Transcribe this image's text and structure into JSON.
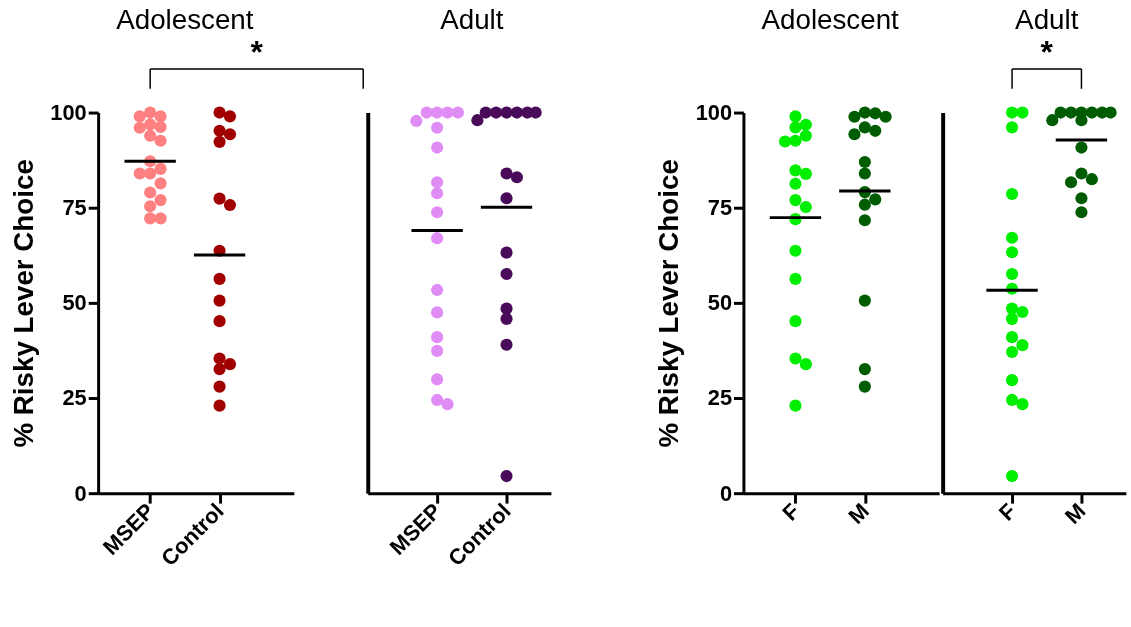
{
  "chart_data": [
    {
      "type": "scatter",
      "title": "Adolescent",
      "ylabel": "% Risky Lever Choice",
      "categories": [
        "MSEP",
        "Control"
      ],
      "ylim": [
        0,
        100
      ],
      "yticks": [
        0,
        25,
        50,
        75,
        100
      ],
      "marker": "circle",
      "annotations": [
        "*"
      ],
      "ref_lines": [
        {
          "axis": "y",
          "value": 87.2,
          "color": "#000000"
        },
        {
          "axis": "y",
          "value": 62.6,
          "color": "#000000"
        }
      ],
      "series": [
        {
          "color": "#ff8080",
          "x": [
            "MSEP",
            "MSEP",
            "MSEP",
            "MSEP",
            "MSEP",
            "MSEP",
            "MSEP",
            "MSEP",
            "MSEP",
            "MSEP",
            "MSEP",
            "MSEP",
            "MSEP",
            "MSEP",
            "MSEP",
            "MSEP",
            "MSEP",
            "MSEP"
          ],
          "values": [
            100,
            99,
            99,
            96.9,
            96.2,
            96,
            93.9,
            92.6,
            87.2,
            85.2,
            84,
            84,
            81.4,
            79,
            77,
            75.4,
            72.2,
            72.2
          ]
        },
        {
          "color": "#a00000",
          "x": [
            "Control",
            "Control",
            "Control",
            "Control",
            "Control",
            "Control",
            "Control",
            "Control",
            "Control",
            "Control",
            "Control",
            "Control",
            "Control",
            "Control",
            "Control",
            "Control"
          ],
          "values": [
            100,
            99,
            95.2,
            94.3,
            92.3,
            77.4,
            75.7,
            63.7,
            56.3,
            50.6,
            45.2,
            35.4,
            33.9,
            32.6,
            28,
            23
          ]
        }
      ]
    },
    {
      "type": "scatter",
      "title": "Adult",
      "categories": [
        "MSEP",
        "Control"
      ],
      "ylim": [
        0,
        100
      ],
      "tick_labels": "x",
      "marker": "circle",
      "ref_lines": [
        {
          "axis": "y",
          "value": 69,
          "color": "#000000"
        },
        {
          "axis": "y",
          "value": 75.1,
          "color": "#000000"
        }
      ],
      "series": [
        {
          "color": "#e08cf5",
          "x": [
            "MSEP",
            "MSEP",
            "MSEP",
            "MSEP",
            "MSEP",
            "MSEP",
            "MSEP",
            "MSEP",
            "MSEP",
            "MSEP",
            "MSEP",
            "MSEP",
            "MSEP",
            "MSEP",
            "MSEP",
            "MSEP",
            "MSEP",
            "MSEP"
          ],
          "values": [
            100,
            100,
            100,
            100,
            97.8,
            96,
            90.8,
            81.7,
            78.8,
            73.8,
            67,
            53.4,
            47.5,
            41,
            37.4,
            29.9,
            24.5,
            23.4
          ]
        },
        {
          "color": "#4a0a5a",
          "x": [
            "Control",
            "Control",
            "Control",
            "Control",
            "Control",
            "Control",
            "Control",
            "Control",
            "Control",
            "Control",
            "Control",
            "Control",
            "Control",
            "Control",
            "Control",
            "Control"
          ],
          "values": [
            100,
            100,
            100,
            100,
            100,
            100,
            98,
            84,
            83,
            77.5,
            63.2,
            57.6,
            48.5,
            45.8,
            39,
            4.5
          ]
        }
      ]
    },
    {
      "type": "scatter",
      "title": "Adolescent",
      "ylabel": "% Risky Lever Choice",
      "categories": [
        "F",
        "M"
      ],
      "ylim": [
        0,
        100
      ],
      "yticks": [
        0,
        25,
        50,
        75,
        100
      ],
      "marker": "circle",
      "ref_lines": [
        {
          "axis": "y",
          "value": 72.4,
          "color": "#000000"
        },
        {
          "axis": "y",
          "value": 79.4,
          "color": "#000000"
        }
      ],
      "series": [
        {
          "color": "#00ee00",
          "x": [
            "F",
            "F",
            "F",
            "F",
            "F",
            "F",
            "F",
            "F",
            "F",
            "F",
            "F",
            "F",
            "F",
            "F",
            "F",
            "F",
            "F",
            "F"
          ],
          "values": [
            99,
            96.8,
            96.1,
            93.9,
            92.6,
            92.4,
            84.8,
            83.9,
            81.3,
            77,
            75.2,
            72,
            63.7,
            56.3,
            45.2,
            35.4,
            33.9,
            23
          ]
        },
        {
          "color": "#005c00",
          "x": [
            "M",
            "M",
            "M",
            "M",
            "M",
            "M",
            "M",
            "M",
            "M",
            "M",
            "M",
            "M",
            "M",
            "M",
            "M",
            "M"
          ],
          "values": [
            100,
            99.8,
            98.9,
            98.9,
            96.1,
            95.2,
            94.3,
            87,
            84,
            79.1,
            77.2,
            75.8,
            71.7,
            50.6,
            32.6,
            28
          ]
        }
      ]
    },
    {
      "type": "scatter",
      "title": "Adult",
      "categories": [
        "F",
        "M"
      ],
      "ylim": [
        0,
        100
      ],
      "tick_labels": "x",
      "marker": "circle",
      "annotations": [
        "*"
      ],
      "ref_lines": [
        {
          "axis": "y",
          "value": 53.3,
          "color": "#000000"
        },
        {
          "axis": "y",
          "value": 92.8,
          "color": "#000000"
        }
      ],
      "series": [
        {
          "color": "#00ee00",
          "x": [
            "F",
            "F",
            "F",
            "F",
            "F",
            "F",
            "F",
            "F",
            "F",
            "F",
            "F",
            "F",
            "F",
            "F",
            "F",
            "F",
            "F",
            "F"
          ],
          "values": [
            100,
            100,
            96.1,
            78.6,
            67.1,
            63.3,
            57.6,
            53.7,
            48.5,
            47.6,
            45.8,
            41,
            38.9,
            37.1,
            29.7,
            24.5,
            23.4,
            4.5
          ]
        },
        {
          "color": "#005c00",
          "x": [
            "M",
            "M",
            "M",
            "M",
            "M",
            "M",
            "M",
            "M",
            "M",
            "M",
            "M",
            "M",
            "M",
            "M"
          ],
          "values": [
            100,
            100,
            100,
            100,
            100,
            100,
            98,
            98,
            90.8,
            84,
            82.5,
            81.7,
            77.5,
            73.8
          ]
        }
      ]
    }
  ]
}
